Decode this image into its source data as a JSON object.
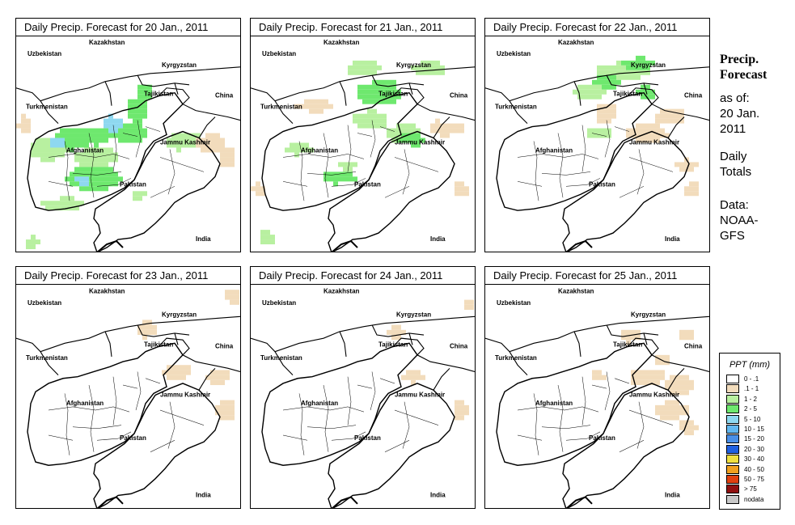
{
  "panels": [
    {
      "title": "Daily Precip. Forecast for  20 Jan., 2011"
    },
    {
      "title": "Daily Precip. Forecast for  21 Jan., 2011"
    },
    {
      "title": "Daily Precip. Forecast for  22 Jan., 2011"
    },
    {
      "title": "Daily Precip. Forecast for  23 Jan., 2011"
    },
    {
      "title": "Daily Precip. Forecast for  24 Jan., 2011"
    },
    {
      "title": "Daily Precip. Forecast for  25 Jan., 2011"
    }
  ],
  "map_labels": {
    "kazakhstan": "Kazakhstan",
    "uzbekistan": "Uzbekistan",
    "kyrgyzstan": "Kyrgyzstan",
    "tajikistan": "Tajikistan",
    "china": "China",
    "turkmenistan": "Turkmenistan",
    "afghanistan": "Afghanistan",
    "jammu_kashmir": "Jammu Kashmir",
    "pakistan": "Pakistan",
    "india": "India"
  },
  "sidebar": {
    "title_line1": "Precip.",
    "title_line2": "Forecast",
    "asof_line1": "as of:",
    "asof_line2": "20 Jan.",
    "asof_line3": "2011",
    "daily_line1": "Daily",
    "daily_line2": "Totals",
    "data_line1": "Data:",
    "data_line2": "NOAA-",
    "data_line3": "GFS"
  },
  "legend": {
    "title": "PPT (mm)",
    "items": [
      {
        "label": "0 - .1",
        "color": "#ffffff"
      },
      {
        "label": ".1 - 1",
        "color": "#f2dcbc"
      },
      {
        "label": "1 - 2",
        "color": "#b8f0a0"
      },
      {
        "label": "2 - 5",
        "color": "#6ee86e"
      },
      {
        "label": "5 - 10",
        "color": "#8ed8f0"
      },
      {
        "label": "10 - 15",
        "color": "#62b8f0"
      },
      {
        "label": "15 - 20",
        "color": "#4a90e8"
      },
      {
        "label": "20 - 30",
        "color": "#2060e0"
      },
      {
        "label": "30 - 40",
        "color": "#f0e040"
      },
      {
        "label": "40 - 50",
        "color": "#f0a020"
      },
      {
        "label": "50 - 75",
        "color": "#e04010"
      },
      {
        "label": "> 75",
        "color": "#901010"
      },
      {
        "label": "nodata",
        "color": "#c8c8c8"
      }
    ]
  }
}
